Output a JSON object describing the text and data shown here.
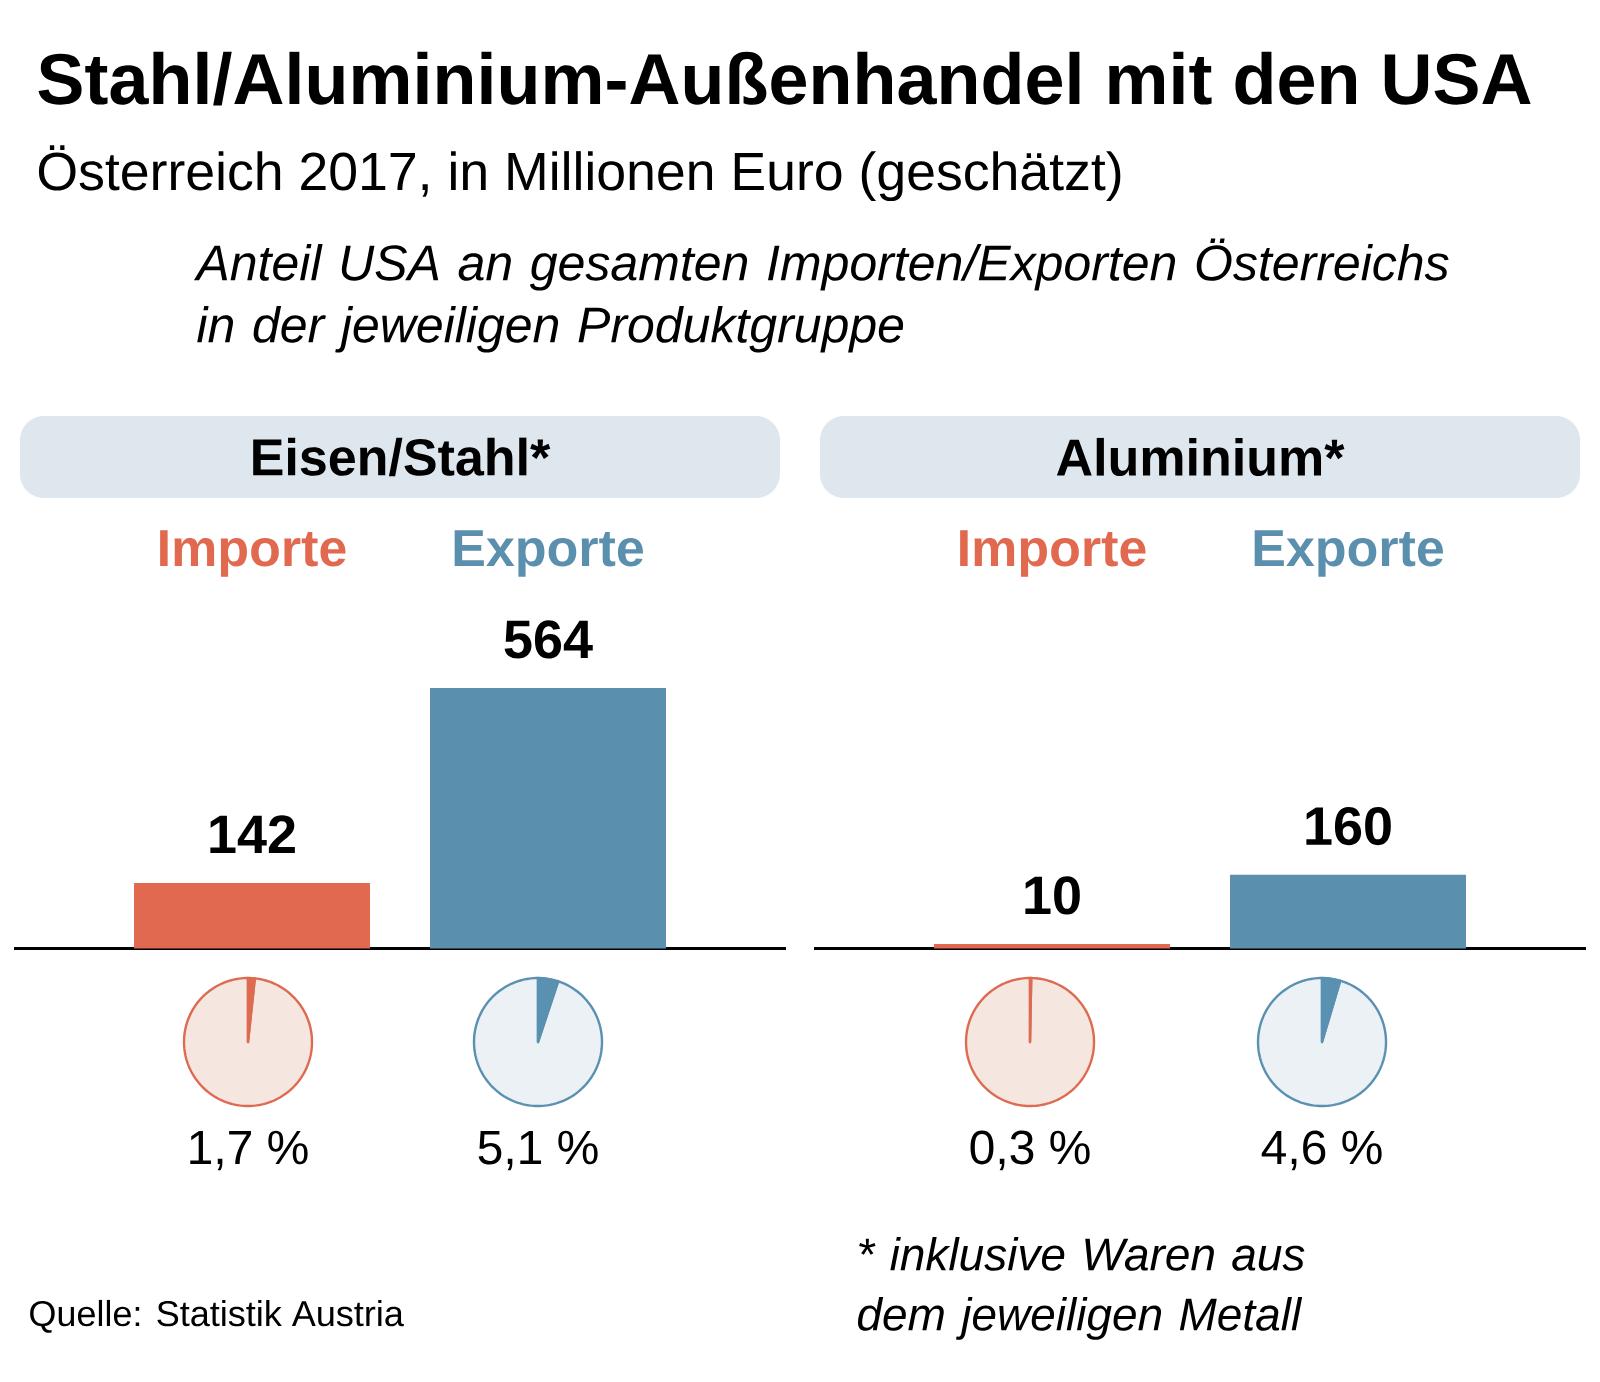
{
  "chart_data": [
    {
      "type": "other",
      "title": "Stahl/Aluminium-Außenhandel mit den USA",
      "subtitle": "Österreich 2017, in Millionen Euro (geschätzt)",
      "annotations": [
        "Anteil USA an gesamten Importen/Exporten Österreichs in der jeweiligen Produktgruppe",
        "* inklusive Waren aus dem jeweiligen Metall",
        "Quelle: Statistik Austria"
      ]
    },
    {
      "type": "bar",
      "title": "Eisen/Stahl*",
      "categories": [
        "Importe",
        "Exporte"
      ],
      "values": [
        142,
        564
      ],
      "colors": [
        "#e0694f",
        "#5b8fae"
      ],
      "data_labels": true
    },
    {
      "type": "pie",
      "categories": [
        null,
        null
      ],
      "values": [
        1.7,
        98.3
      ],
      "colors": [
        "#dd6b52",
        "#f6e6e0"
      ],
      "annotations": [
        "1,7 %"
      ]
    },
    {
      "type": "pie",
      "categories": [
        null,
        null
      ],
      "values": [
        5.1,
        94.9
      ],
      "colors": [
        "#5a90b0",
        "#ebf1f5"
      ],
      "annotations": [
        "5,1 %"
      ]
    },
    {
      "type": "bar",
      "title": "Aluminium*",
      "categories": [
        "Importe",
        "Exporte"
      ],
      "values": [
        10,
        160
      ],
      "colors": [
        "#e0694f",
        "#5b8fae"
      ],
      "data_labels": true
    },
    {
      "type": "pie",
      "categories": [
        null,
        null
      ],
      "values": [
        0.3,
        99.7
      ],
      "colors": [
        "#dd6b52",
        "#f6e6e0"
      ],
      "annotations": [
        "0,3 %"
      ]
    },
    {
      "type": "pie",
      "categories": [
        null,
        null
      ],
      "values": [
        4.6,
        95.4
      ],
      "colors": [
        "#5a90b0",
        "#ebf1f5"
      ],
      "annotations": [
        "4,6 %"
      ]
    }
  ]
}
